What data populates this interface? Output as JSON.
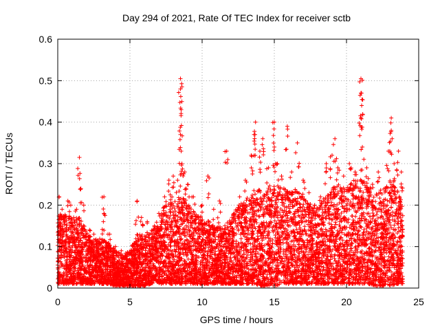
{
  "chart_data": {
    "type": "scatter",
    "title": "Day 294 of 2021, Rate Of TEC Index for receiver sctb",
    "xlabel": "GPS time / hours",
    "ylabel": "ROTI / TECUs",
    "xlim": [
      0,
      25
    ],
    "ylim": [
      0,
      0.6
    ],
    "x_ticks": [
      0,
      5,
      10,
      15,
      20,
      25
    ],
    "y_ticks": [
      0,
      0.1,
      0.2,
      0.3,
      0.4,
      0.5,
      0.6
    ],
    "x_tick_labels": [
      "0",
      "5",
      "10",
      "15",
      "20",
      "25"
    ],
    "y_tick_labels": [
      "0",
      "0.1",
      "0.2",
      "0.3",
      "0.4",
      "0.5",
      "0.6"
    ],
    "grid": true,
    "marker": "+",
    "color": "#ff0000",
    "series": [
      {
        "name": "ROTI",
        "points": [
          [
            0.1,
            0.22
          ],
          [
            0.3,
            0.19
          ],
          [
            0.5,
            0.16
          ],
          [
            0.7,
            0.21
          ],
          [
            0.9,
            0.2
          ],
          [
            1.1,
            0.17
          ],
          [
            1.3,
            0.19
          ],
          [
            1.5,
            0.315
          ],
          [
            1.6,
            0.24
          ],
          [
            1.8,
            0.2
          ],
          [
            2.2,
            0.14
          ],
          [
            2.5,
            0.13
          ],
          [
            3.2,
            0.22
          ],
          [
            3.2,
            0.18
          ],
          [
            3.6,
            0.13
          ],
          [
            4.0,
            0.1
          ],
          [
            4.4,
            0.09
          ],
          [
            4.8,
            0.07
          ],
          [
            5.2,
            0.1
          ],
          [
            5.5,
            0.21
          ],
          [
            5.8,
            0.17
          ],
          [
            6.2,
            0.16
          ],
          [
            6.6,
            0.14
          ],
          [
            7.0,
            0.18
          ],
          [
            7.4,
            0.22
          ],
          [
            7.7,
            0.26
          ],
          [
            8.0,
            0.27
          ],
          [
            8.3,
            0.26
          ],
          [
            8.5,
            0.505
          ],
          [
            8.5,
            0.48
          ],
          [
            8.55,
            0.43
          ],
          [
            8.5,
            0.37
          ],
          [
            8.55,
            0.33
          ],
          [
            8.6,
            0.3
          ],
          [
            8.8,
            0.28
          ],
          [
            9.0,
            0.25
          ],
          [
            9.4,
            0.22
          ],
          [
            10.0,
            0.2
          ],
          [
            10.4,
            0.27
          ],
          [
            10.8,
            0.19
          ],
          [
            11.2,
            0.21
          ],
          [
            11.7,
            0.33
          ],
          [
            12.2,
            0.18
          ],
          [
            12.6,
            0.22
          ],
          [
            13.0,
            0.26
          ],
          [
            13.4,
            0.32
          ],
          [
            13.6,
            0.37
          ],
          [
            13.7,
            0.4
          ],
          [
            14.0,
            0.33
          ],
          [
            14.2,
            0.36
          ],
          [
            14.6,
            0.29
          ],
          [
            15.0,
            0.4
          ],
          [
            15.0,
            0.34
          ],
          [
            15.2,
            0.3
          ],
          [
            15.5,
            0.27
          ],
          [
            15.9,
            0.39
          ],
          [
            16.2,
            0.28
          ],
          [
            16.6,
            0.35
          ],
          [
            17.0,
            0.26
          ],
          [
            17.4,
            0.23
          ],
          [
            17.8,
            0.2
          ],
          [
            18.2,
            0.22
          ],
          [
            18.6,
            0.3
          ],
          [
            19.0,
            0.32
          ],
          [
            19.2,
            0.36
          ],
          [
            19.4,
            0.29
          ],
          [
            19.8,
            0.27
          ],
          [
            20.2,
            0.3
          ],
          [
            20.6,
            0.28
          ],
          [
            21.0,
            0.505
          ],
          [
            21.0,
            0.47
          ],
          [
            21.05,
            0.44
          ],
          [
            21.0,
            0.41
          ],
          [
            21.1,
            0.34
          ],
          [
            21.4,
            0.29
          ],
          [
            21.8,
            0.25
          ],
          [
            22.2,
            0.28
          ],
          [
            22.6,
            0.2
          ],
          [
            22.9,
            0.33
          ],
          [
            23.1,
            0.41
          ],
          [
            23.1,
            0.38
          ],
          [
            23.3,
            0.3
          ],
          [
            23.6,
            0.33
          ],
          [
            23.8,
            0.28
          ]
        ],
        "bulk": [
          [
            0.0,
            0.01,
            0.17
          ],
          [
            0.5,
            0.01,
            0.18
          ],
          [
            1.0,
            0.01,
            0.17
          ],
          [
            1.5,
            0.01,
            0.17
          ],
          [
            2.0,
            0.01,
            0.14
          ],
          [
            2.5,
            0.01,
            0.12
          ],
          [
            3.0,
            0.01,
            0.12
          ],
          [
            3.5,
            0.01,
            0.11
          ],
          [
            4.0,
            0.005,
            0.09
          ],
          [
            4.5,
            0.005,
            0.08
          ],
          [
            5.0,
            0.005,
            0.09
          ],
          [
            5.5,
            0.005,
            0.13
          ],
          [
            6.0,
            0.005,
            0.13
          ],
          [
            6.5,
            0.01,
            0.14
          ],
          [
            7.0,
            0.01,
            0.17
          ],
          [
            7.5,
            0.01,
            0.2
          ],
          [
            8.0,
            0.01,
            0.21
          ],
          [
            8.5,
            0.01,
            0.22
          ],
          [
            9.0,
            0.01,
            0.21
          ],
          [
            9.5,
            0.01,
            0.18
          ],
          [
            10.0,
            0.01,
            0.17
          ],
          [
            10.5,
            0.01,
            0.16
          ],
          [
            11.0,
            0.01,
            0.15
          ],
          [
            11.5,
            0.01,
            0.15
          ],
          [
            12.0,
            0.01,
            0.17
          ],
          [
            12.5,
            0.01,
            0.2
          ],
          [
            13.0,
            0.01,
            0.21
          ],
          [
            13.5,
            0.01,
            0.24
          ],
          [
            14.0,
            0.005,
            0.24
          ],
          [
            14.5,
            0.005,
            0.24
          ],
          [
            15.0,
            0.005,
            0.25
          ],
          [
            15.5,
            0.01,
            0.25
          ],
          [
            16.0,
            0.01,
            0.23
          ],
          [
            16.5,
            0.01,
            0.24
          ],
          [
            17.0,
            0.01,
            0.22
          ],
          [
            17.5,
            0.01,
            0.2
          ],
          [
            18.0,
            0.01,
            0.2
          ],
          [
            18.5,
            0.01,
            0.22
          ],
          [
            19.0,
            0.01,
            0.24
          ],
          [
            19.5,
            0.01,
            0.25
          ],
          [
            20.0,
            0.01,
            0.24
          ],
          [
            20.5,
            0.01,
            0.26
          ],
          [
            21.0,
            0.01,
            0.27
          ],
          [
            21.5,
            0.01,
            0.25
          ],
          [
            22.0,
            0.005,
            0.23
          ],
          [
            22.5,
            0.005,
            0.24
          ],
          [
            23.0,
            0.005,
            0.26
          ],
          [
            23.5,
            0.01,
            0.24
          ],
          [
            23.9,
            0.01,
            0.2
          ]
        ]
      }
    ]
  }
}
